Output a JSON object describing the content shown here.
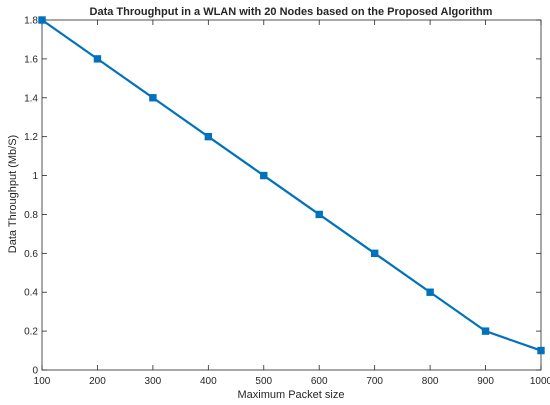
{
  "chart_data": {
    "type": "line",
    "title": "Data Throughput in a WLAN with 20 Nodes based on the Proposed Algorithm",
    "xlabel": "Maximum Packet size",
    "ylabel": "Data Throughput (Mb/S)",
    "xlim": [
      100,
      1000
    ],
    "ylim": [
      0,
      1.8
    ],
    "xticks": [
      "100",
      "200",
      "300",
      "400",
      "500",
      "600",
      "700",
      "800",
      "900",
      "1000"
    ],
    "yticks": [
      "0",
      "0.2",
      "0.4",
      "0.6",
      "0.8",
      "1",
      "1.2",
      "1.4",
      "1.6",
      "1.8"
    ],
    "grid": false,
    "series": [
      {
        "color": "#0072BD",
        "marker": "square",
        "x": [
          100,
          200,
          300,
          400,
          500,
          600,
          700,
          800,
          900,
          1000
        ],
        "y": [
          1.8,
          1.6,
          1.4,
          1.2,
          1.0,
          0.8,
          0.6,
          0.4,
          0.2,
          0.1
        ]
      }
    ]
  }
}
